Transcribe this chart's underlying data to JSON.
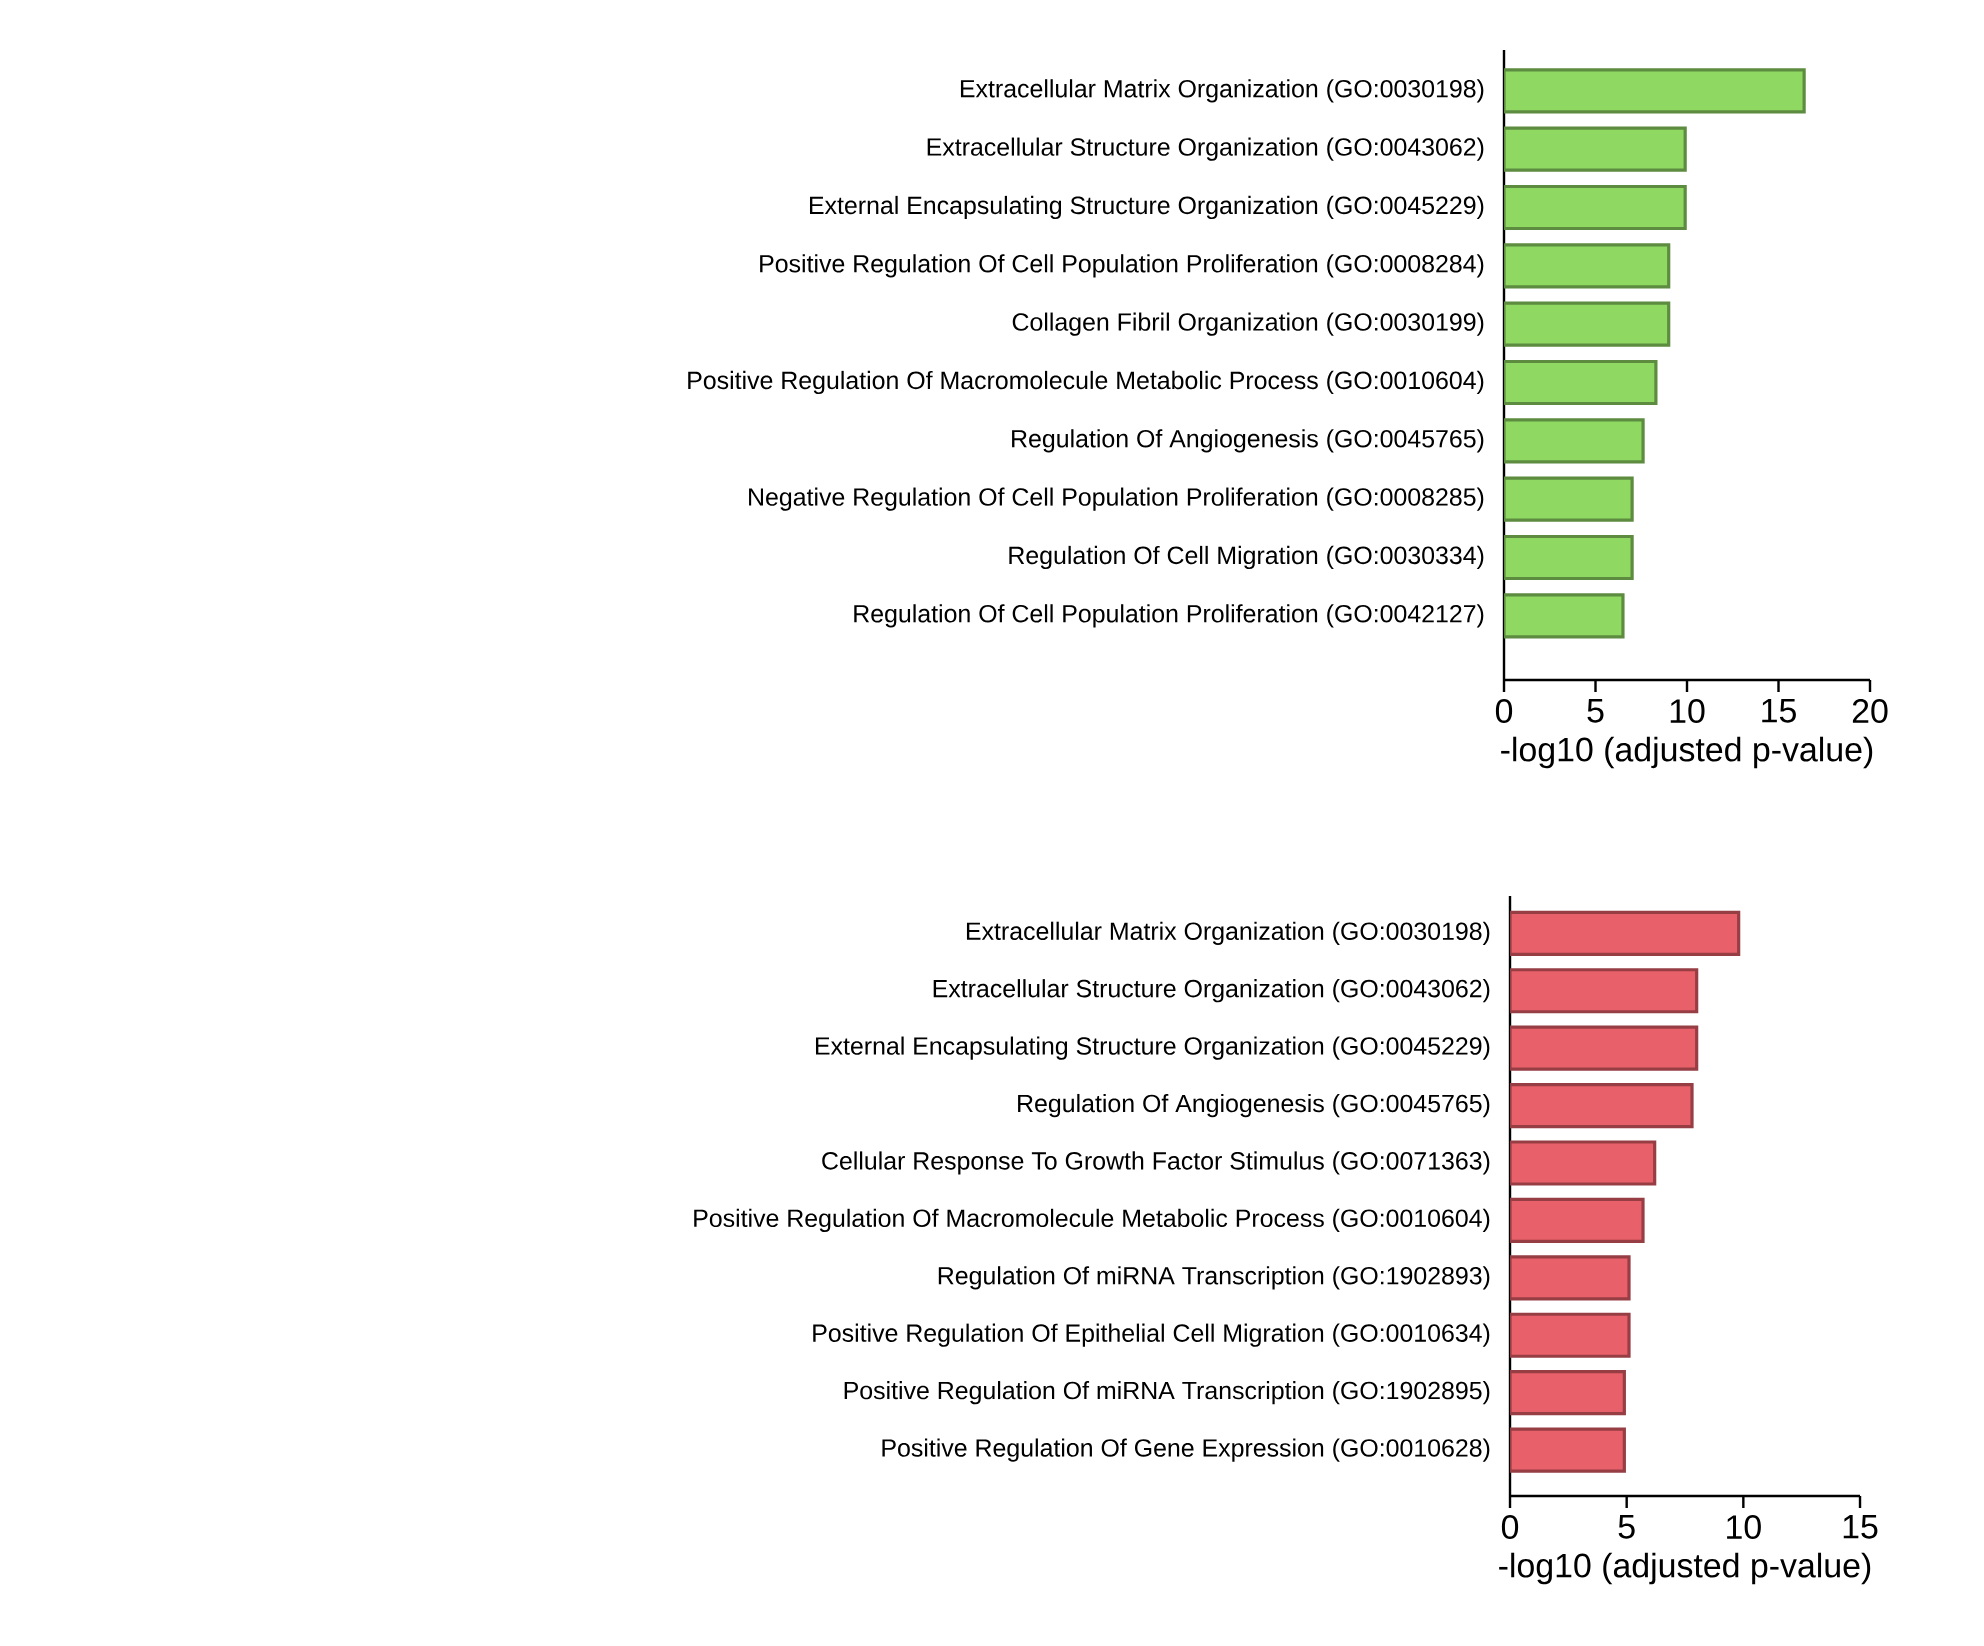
{
  "chart_data": [
    {
      "type": "bar",
      "orientation": "horizontal",
      "color": "#8fd862",
      "xlabel": "-log10 (adjusted p-value)",
      "xlim": [
        0,
        20
      ],
      "xticks": [
        0,
        5,
        10,
        15,
        20
      ],
      "categories": [
        "Extracellular Matrix Organization (GO:0030198)",
        "Extracellular Structure Organization (GO:0043062)",
        "External Encapsulating Structure Organization (GO:0045229)",
        "Positive Regulation Of Cell Population Proliferation (GO:0008284)",
        "Collagen Fibril Organization (GO:0030199)",
        "Positive Regulation Of Macromolecule Metabolic Process (GO:0010604)",
        "Regulation Of Angiogenesis (GO:0045765)",
        "Negative Regulation Of Cell Population Proliferation (GO:0008285)",
        "Regulation Of Cell Migration (GO:0030334)",
        "Regulation Of Cell Population Proliferation (GO:0042127)"
      ],
      "values": [
        16.4,
        9.9,
        9.9,
        9.0,
        9.0,
        8.3,
        7.6,
        7.0,
        7.0,
        6.5
      ]
    },
    {
      "type": "bar",
      "orientation": "horizontal",
      "color": "#e8606a",
      "xlabel": "-log10 (adjusted p-value)",
      "xlim": [
        0,
        15
      ],
      "xticks": [
        0,
        5,
        10,
        15
      ],
      "categories": [
        "Extracellular Matrix Organization (GO:0030198)",
        "Extracellular Structure Organization (GO:0043062)",
        "External Encapsulating Structure Organization (GO:0045229)",
        "Regulation Of Angiogenesis (GO:0045765)",
        "Cellular Response To Growth Factor Stimulus (GO:0071363)",
        "Positive Regulation Of Macromolecule Metabolic Process (GO:0010604)",
        "Regulation Of miRNA Transcription (GO:1902893)",
        "Positive Regulation Of Epithelial Cell Migration (GO:0010634)",
        "Positive Regulation Of miRNA Transcription (GO:1902895)",
        "Positive Regulation Of Gene Expression (GO:0010628)"
      ],
      "values": [
        9.8,
        8.0,
        8.0,
        7.8,
        6.2,
        5.7,
        5.1,
        5.1,
        4.9,
        4.9
      ]
    }
  ]
}
